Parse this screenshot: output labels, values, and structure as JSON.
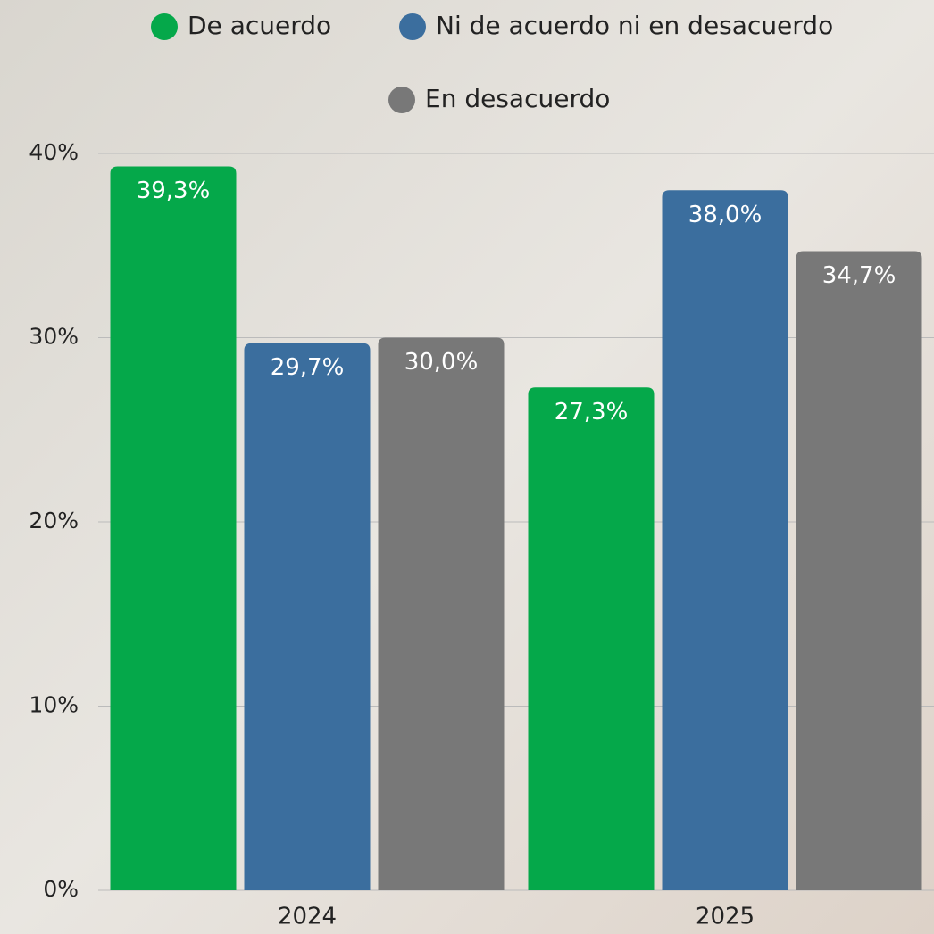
{
  "chart_data": {
    "type": "bar",
    "categories": [
      "2024",
      "2025"
    ],
    "series": [
      {
        "name": "De acuerdo",
        "color": "#05a84a",
        "values": [
          39.3,
          27.3
        ],
        "value_labels": [
          "39,3%",
          "27,3%"
        ]
      },
      {
        "name": "Ni de acuerdo ni en desacuerdo",
        "color": "#3b6e9e",
        "values": [
          29.7,
          38.0
        ],
        "value_labels": [
          "29,7%",
          "38,0%"
        ]
      },
      {
        "name": "En desacuerdo",
        "color": "#787878",
        "values": [
          30.0,
          34.7
        ],
        "value_labels": [
          "30,0%",
          "34,7%"
        ]
      }
    ],
    "ylim": [
      0,
      40
    ],
    "yticks": [
      {
        "value": 0,
        "label": "0%"
      },
      {
        "value": 10,
        "label": "10%"
      },
      {
        "value": 20,
        "label": "20%"
      },
      {
        "value": 30,
        "label": "30%"
      },
      {
        "value": 40,
        "label": "40%"
      }
    ],
    "grid": true,
    "legend": "top"
  }
}
